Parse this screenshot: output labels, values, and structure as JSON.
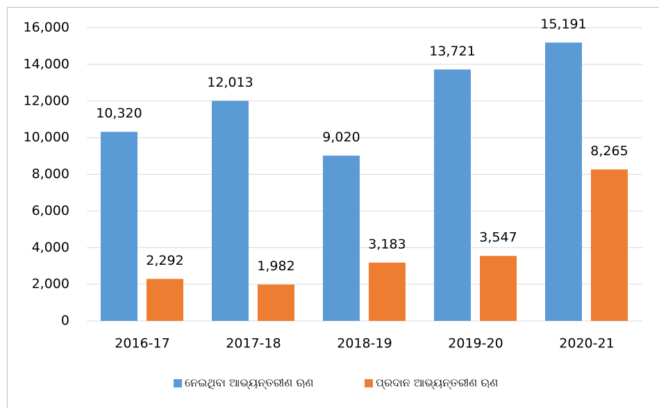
{
  "chart_data": {
    "type": "bar",
    "categories": [
      "2016-17",
      "2017-18",
      "2018-19",
      "2019-20",
      "2020-21"
    ],
    "series": [
      {
        "name": "ନେଇଥିବା ଆଭ୍ୟନ୍ତରୀଣ ଋଣ",
        "color": "#5b9bd5",
        "values": [
          10320,
          12013,
          9020,
          13721,
          15191
        ],
        "value_labels": [
          "10,320",
          "12,013",
          "9,020",
          "13,721",
          "15,191"
        ]
      },
      {
        "name": "ପ୍ରଦାନ ଆଭ୍ୟନ୍ତରୀଣ ଋଣ",
        "color": "#ed7d31",
        "values": [
          2292,
          1982,
          3183,
          3547,
          8265
        ],
        "value_labels": [
          "2,292",
          "1,982",
          "3,183",
          "3,547",
          "8,265"
        ]
      }
    ],
    "ylim": [
      0,
      16000
    ],
    "yticks": [
      0,
      {
        "value": 2000,
        "label": "2,000"
      },
      {
        "value": 4000,
        "label": "4,000"
      },
      {
        "value": 6000,
        "label": "6,000"
      },
      {
        "value": 8000,
        "label": "8,000"
      },
      {
        "value": 10000,
        "label": "10,000"
      },
      {
        "value": 12000,
        "label": "12,000"
      },
      {
        "value": 14000,
        "label": "14,000"
      },
      {
        "value": 16000,
        "label": "16,000"
      }
    ],
    "grid": true,
    "legend": "bottom"
  }
}
